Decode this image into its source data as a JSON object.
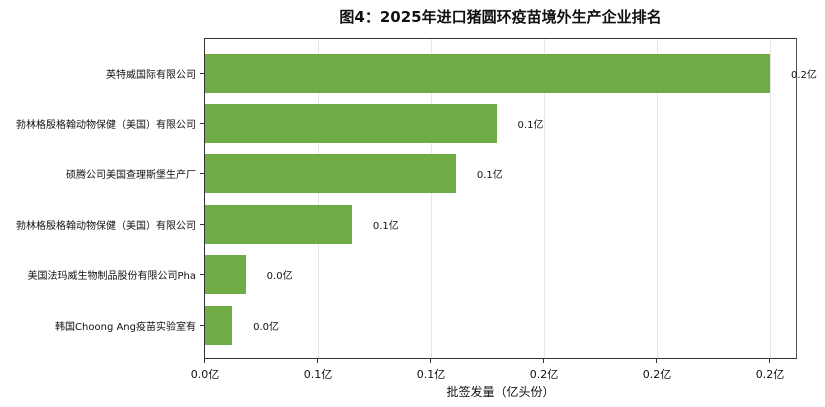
{
  "chart_data": {
    "type": "bar",
    "orientation": "horizontal",
    "title": "图4：2025年进口猪圆环疫苗境外生产企业排名",
    "xlabel": "批签发量（亿头份）",
    "ylabel": "",
    "xlim": [
      0,
      0.262
    ],
    "grid": true,
    "legend": null,
    "color": "#6fac46",
    "categories": [
      "英特威国际有限公司",
      "勃林格殷格翰动物保健（美国）有限公司",
      "硕腾公司美国查理斯堡生产厂",
      "勃林格殷格翰动物保健（美国）有限公司",
      "美国法玛威生物制品股份有限公司Pha",
      "韩国Choong Ang疫苗实验室有"
    ],
    "values": [
      0.25,
      0.129,
      0.111,
      0.065,
      0.018,
      0.012
    ],
    "value_labels": [
      "0.2亿",
      "0.1亿",
      "0.1亿",
      "0.1亿",
      "0.0亿",
      "0.0亿"
    ],
    "x_ticks": [
      0,
      0.05,
      0.1,
      0.15,
      0.2,
      0.25
    ],
    "x_tick_labels": [
      "0.0亿",
      "0.1亿",
      "0.1亿",
      "0.2亿",
      "0.2亿",
      "0.2亿"
    ]
  }
}
